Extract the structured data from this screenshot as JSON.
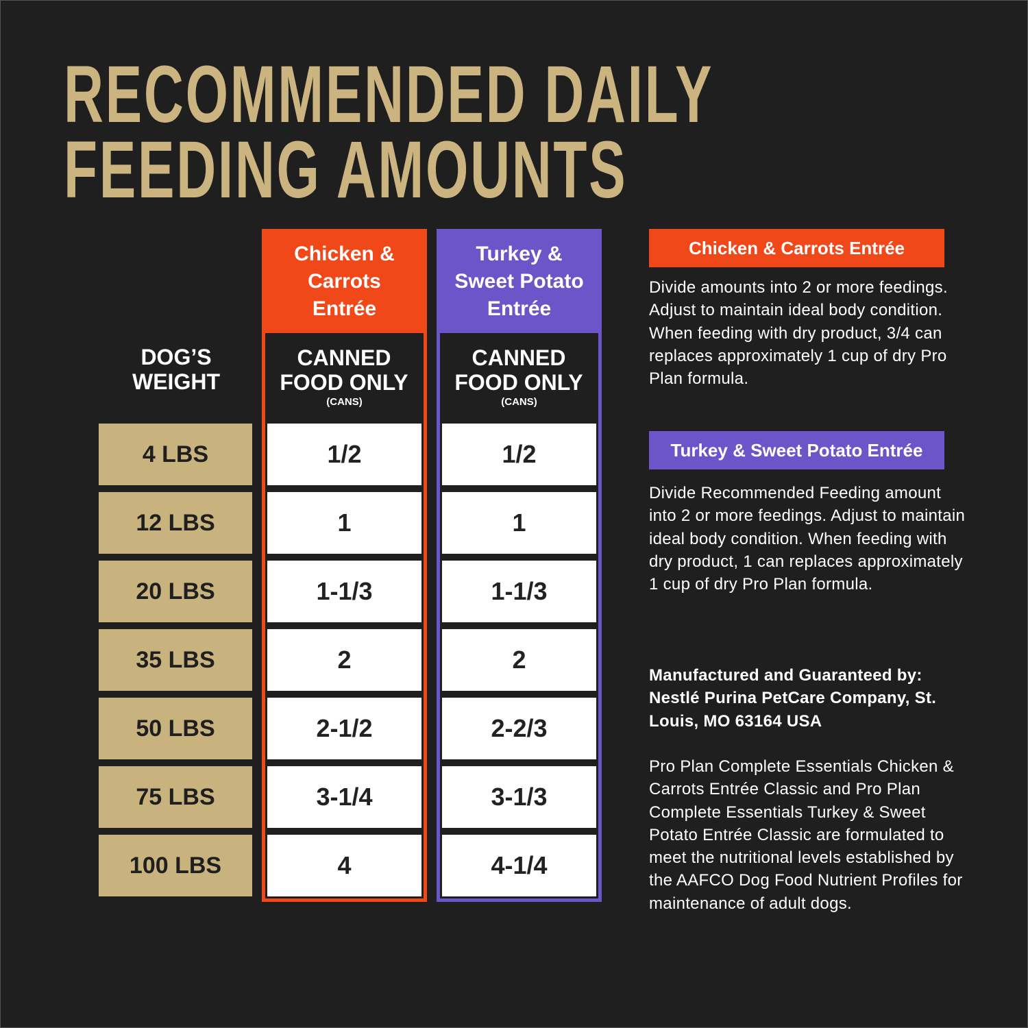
{
  "title": [
    "RECOMMENDED DAILY",
    "FEEDING AMOUNTS"
  ],
  "table": {
    "weight_header": "DOG’S WEIGHT",
    "weights": [
      "4 LBS",
      "12 LBS",
      "20 LBS",
      "35 LBS",
      "50 LBS",
      "75 LBS",
      "100 LBS"
    ],
    "columns": [
      {
        "name": "Chicken & Carrots Entrée",
        "color": "#f04819",
        "subheader": "CANNED FOOD ONLY",
        "unit": "(CANS)",
        "values": [
          "1/2",
          "1",
          "1-1/3",
          "2",
          "2-1/2",
          "3-1/4",
          "4"
        ]
      },
      {
        "name": "Turkey & Sweet Potato Entrée",
        "color": "#6b55c9",
        "subheader": "CANNED FOOD ONLY",
        "unit": "(CANS)",
        "values": [
          "1/2",
          "1",
          "1-1/3",
          "2",
          "2-2/3",
          "3-1/3",
          "4-1/4"
        ]
      }
    ]
  },
  "notes": [
    {
      "heading": "Chicken & Carrots Entrée",
      "color": "#f04819",
      "text": "Divide amounts into 2 or more feedings. Adjust to maintain ideal body condition. When feeding with dry product, 3/4 can replaces approximately 1 cup of dry Pro Plan formula."
    },
    {
      "heading": "Turkey & Sweet Potato Entrée",
      "color": "#6b55c9",
      "text": "Divide Recommended Feeding amount into 2 or more feedings. Adjust to maintain ideal body condition. When feeding with dry product, 1 can replaces approximately 1 cup of dry Pro Plan formula."
    }
  ],
  "manufacturer": "Manufactured and Guaranteed by: Nestlé Purina PetCare Company, St. Louis, MO 63164 USA",
  "statement": "Pro Plan Complete Essentials Chicken & Carrots Entrée Classic and Pro Plan Complete Essentials Turkey & Sweet Potato Entrée Classic are formulated to meet the nutritional levels established by the AAFCO Dog Food Nutrient Profiles for maintenance of adult dogs."
}
